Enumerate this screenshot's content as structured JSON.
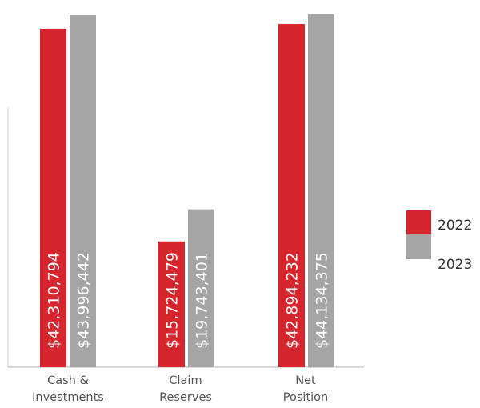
{
  "chart_data": {
    "type": "bar",
    "categories": [
      [
        "Cash &",
        "Investments"
      ],
      [
        "Claim",
        "Reserves"
      ],
      [
        "Net",
        "Position"
      ]
    ],
    "series": [
      {
        "name": "2022",
        "color": "#d7252e",
        "values": [
          42310794,
          15724479,
          42894232
        ],
        "labels": [
          "$42,310,794",
          "$15,724,479",
          "$42,894,232"
        ]
      },
      {
        "name": "2023",
        "color": "#a5a5a5",
        "values": [
          43996442,
          19743401,
          44134375
        ],
        "labels": [
          "$43,996,442",
          "$19,743,401",
          "$44,134,375"
        ]
      }
    ],
    "title": "",
    "xlabel": "",
    "ylabel": "",
    "ylim": [
      0,
      45000000
    ],
    "grid": false,
    "legend": "right"
  }
}
